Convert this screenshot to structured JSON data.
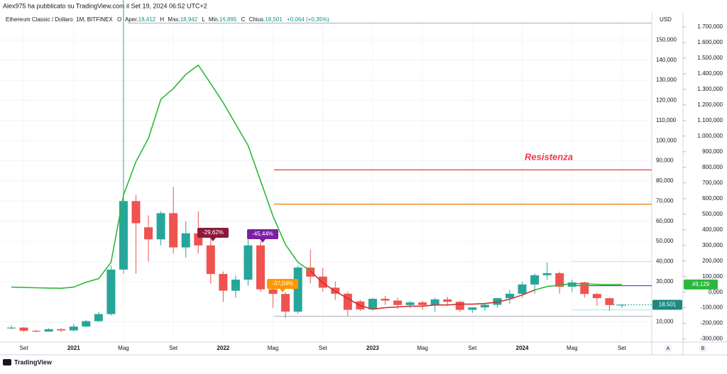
{
  "header": {
    "publisher": "Alex975 ha pubblicato su TradingView.com il Set 19, 2024 06:52 UTC+2",
    "symbol": "Ethereum Classic / Dollaro, 1M, BITFINEX",
    "ohlc": [
      {
        "key": "O",
        "label": "Aper.",
        "value": "18,412"
      },
      {
        "key": "H",
        "label": "Max.",
        "value": "18,942"
      },
      {
        "key": "L",
        "label": "Min.",
        "value": "16,895"
      },
      {
        "key": "C",
        "label": "Chius.",
        "value": "18,501"
      }
    ],
    "change": "+0,064 (+0,35%)"
  },
  "footer": {
    "brand": "TradingView",
    "buttons": [
      "A",
      "B"
    ]
  },
  "chart_data": {
    "type": "candlestick",
    "currency": "USD",
    "categories": [
      null,
      "Set",
      null,
      null,
      null,
      "2021",
      null,
      null,
      null,
      "Mag",
      null,
      null,
      null,
      "Set",
      null,
      null,
      null,
      "2022",
      null,
      null,
      null,
      "Mag",
      null,
      null,
      null,
      "Set",
      null,
      null,
      null,
      "2023",
      null,
      null,
      null,
      "Mag",
      null,
      null,
      null,
      "Set",
      null,
      null,
      null,
      "2024",
      null,
      null,
      null,
      "Mag",
      null,
      null,
      null,
      "Set"
    ],
    "open": [
      6.8,
      7.2,
      5.6,
      5.2,
      6.4,
      5.8,
      7.7,
      10.4,
      13.9,
      36,
      70,
      57,
      51,
      64,
      47,
      54,
      48,
      33.8,
      25.5,
      31,
      48,
      26.2,
      23.9,
      15.1,
      37,
      32.5,
      27,
      24,
      20.2,
      16.2,
      21.5,
      20.6,
      18.4,
      19.7,
      18.4,
      21.2,
      20,
      16,
      17.2,
      18.5,
      21.8,
      24,
      28.6,
      33.2,
      34.2,
      27.5,
      29.6,
      23.9,
      21.8,
      18.412
    ],
    "high": [
      8.3,
      7.4,
      6.0,
      6.9,
      6.9,
      9.1,
      11,
      15,
      38,
      176,
      73,
      63,
      65,
      77,
      60,
      65,
      53,
      35,
      33,
      51,
      50,
      30,
      25,
      38,
      46,
      37,
      30,
      25,
      21,
      22,
      23,
      22,
      20.5,
      20.5,
      22,
      22.5,
      20.5,
      17,
      19,
      22,
      26,
      30,
      34,
      39.6,
      35,
      31,
      30,
      24.5,
      22,
      18.942
    ],
    "low": [
      6.3,
      5.1,
      4.8,
      5.1,
      5.0,
      5.4,
      7.5,
      10,
      13.2,
      34,
      34,
      40,
      48,
      44,
      42,
      44,
      29,
      20,
      22,
      28,
      25,
      17,
      12,
      14,
      29,
      25,
      21,
      13,
      15.5,
      15.6,
      18.5,
      16.5,
      16.8,
      16,
      15,
      18,
      15,
      14.5,
      15.5,
      17,
      19,
      22,
      24,
      31,
      24,
      25,
      22,
      18,
      15.5,
      16.895
    ],
    "close": [
      7.2,
      5.6,
      5.2,
      6.4,
      5.8,
      7.7,
      10.4,
      13.9,
      36,
      70,
      59,
      51,
      64,
      47,
      54,
      48,
      33.8,
      25.5,
      31,
      48,
      26.2,
      23.9,
      15.1,
      37,
      32.5,
      27,
      24,
      16,
      16.2,
      21.5,
      20.6,
      18.4,
      19.7,
      18.4,
      21.2,
      20,
      16,
      17.2,
      18.5,
      21.8,
      24,
      28.6,
      33.2,
      34.2,
      27.5,
      29.6,
      23.9,
      21.8,
      18.4,
      18.501
    ],
    "up_color": "#26a69a",
    "down_color": "#ef5350",
    "last_price": {
      "value": 18.501,
      "label": "18,501"
    },
    "ylim": [
      0,
      160
    ],
    "yticks": [
      {
        "value": 10,
        "label": "10,000"
      },
      {
        "value": 30,
        "label": "30,000"
      },
      {
        "value": 40,
        "label": "40,000"
      },
      {
        "value": 50,
        "label": "50,000"
      },
      {
        "value": 60,
        "label": "60,000"
      },
      {
        "value": 70,
        "label": "70,000"
      },
      {
        "value": 80,
        "label": "80,000"
      },
      {
        "value": 90,
        "label": "90,000"
      },
      {
        "value": 100,
        "label": "100,000"
      },
      {
        "value": 110,
        "label": "110,000"
      },
      {
        "value": 120,
        "label": "120,000"
      },
      {
        "value": 130,
        "label": "130,000"
      },
      {
        "value": 140,
        "label": "140,000"
      },
      {
        "value": 150,
        "label": "150,000"
      }
    ],
    "y2lim": [
      -320,
      1745
    ],
    "y2ticks": [
      {
        "value": -300,
        "label": "-300,000"
      },
      {
        "value": -200,
        "label": "-200,000"
      },
      {
        "value": -100,
        "label": "-100,000"
      },
      {
        "value": 0,
        "label": "0,000"
      },
      {
        "value": 100,
        "label": "100,000"
      },
      {
        "value": 200,
        "label": "200,000"
      },
      {
        "value": 300,
        "label": "300,000"
      },
      {
        "value": 400,
        "label": "400,000"
      },
      {
        "value": 500,
        "label": "500,000"
      },
      {
        "value": 600,
        "label": "600,000"
      },
      {
        "value": 700,
        "label": "700,000"
      },
      {
        "value": 800,
        "label": "800,000"
      },
      {
        "value": 900,
        "label": "900,000"
      },
      {
        "value": 1000,
        "label": "1.000,000"
      },
      {
        "value": 1100,
        "label": "1.100,000"
      },
      {
        "value": 1200,
        "label": "1.200,000"
      },
      {
        "value": 1300,
        "label": "1.300,000"
      },
      {
        "value": 1400,
        "label": "1.400,000"
      },
      {
        "value": 1500,
        "label": "1.500,000"
      },
      {
        "value": 1600,
        "label": "1.600,000"
      },
      {
        "value": 1700,
        "label": "1.700,000"
      }
    ],
    "series": [
      {
        "color": "#2db83d",
        "axis": "y2",
        "values": [
          32,
          30,
          28,
          26,
          25,
          32,
          64,
          86,
          191,
          623,
          836,
          986,
          1236,
          1305,
          1395,
          1455,
          1336,
          1214,
          1077,
          941,
          714,
          486,
          305,
          191,
          136,
          null,
          null,
          null,
          null,
          null,
          null,
          null,
          null,
          null,
          null,
          null,
          null,
          null,
          null,
          null,
          null,
          null,
          null,
          null,
          null,
          null,
          null,
          null,
          null,
          null
        ]
      },
      {
        "color": "#d32f2f",
        "axis": "y2",
        "values": [
          null,
          null,
          null,
          null,
          null,
          null,
          null,
          null,
          null,
          null,
          null,
          null,
          null,
          null,
          null,
          null,
          null,
          null,
          null,
          null,
          null,
          null,
          null,
          null,
          136,
          59,
          5,
          -41,
          -86,
          -109,
          -100,
          -95,
          -90,
          -90,
          -82,
          -82,
          -77,
          -77,
          -73,
          -64,
          -45,
          -18,
          14,
          null,
          null,
          null,
          null,
          null,
          null,
          null
        ]
      },
      {
        "color": "#2db83d",
        "axis": "y2",
        "values": [
          null,
          null,
          null,
          null,
          null,
          null,
          null,
          null,
          null,
          null,
          null,
          null,
          null,
          null,
          null,
          null,
          null,
          null,
          null,
          null,
          null,
          null,
          null,
          null,
          null,
          null,
          null,
          null,
          null,
          null,
          null,
          null,
          null,
          null,
          null,
          null,
          null,
          null,
          null,
          null,
          null,
          null,
          14,
          36,
          45,
          55,
          53,
          50,
          48,
          49.129
        ],
        "value_labels": [
          null,
          null,
          null,
          null,
          null,
          null,
          null,
          null,
          null,
          null,
          null,
          null,
          null,
          null,
          null,
          null,
          null,
          null,
          null,
          null,
          null,
          null,
          null,
          null,
          null,
          null,
          null,
          null,
          null,
          null,
          null,
          null,
          null,
          null,
          null,
          null,
          null,
          null,
          null,
          null,
          null,
          null,
          null,
          null,
          null,
          null,
          null,
          null,
          null,
          "49,129"
        ]
      }
    ],
    "levels": [
      {
        "value": 158.4,
        "color": "#b2b5be"
      },
      {
        "value": 85.5,
        "color": "#e53935"
      },
      {
        "value": 68.5,
        "color": "#f57c00"
      },
      {
        "value": 40,
        "color": "#b2ebf2"
      },
      {
        "value": 28,
        "color": "#5e35b1"
      },
      {
        "value": 16,
        "color": "#b2ebf2"
      },
      {
        "value": 12.8,
        "color": "#b2b5be"
      }
    ],
    "annotations": [
      {
        "text": "Resistenza",
        "color": "#f23645"
      },
      {
        "text": "-29,62%",
        "color": "#8b1a3a"
      },
      {
        "text": "-45,44%",
        "color": "#7b1fa2"
      },
      {
        "text": "-37,04%",
        "color": "#ff9800"
      }
    ]
  }
}
